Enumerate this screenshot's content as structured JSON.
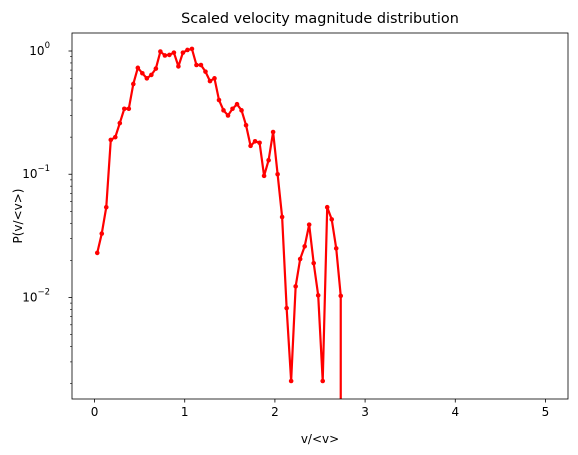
{
  "chart_data": {
    "type": "line",
    "title": "Scaled velocity magnitude distribution",
    "xlabel": "v/<v>",
    "ylabel": "P(v/<v>)",
    "yscale": "log",
    "xlim": [
      -0.25,
      5.25
    ],
    "ylim": [
      0.0015,
      1.4
    ],
    "xticks": [
      0,
      1,
      2,
      3,
      4,
      5
    ],
    "xtick_labels": [
      "0",
      "1",
      "2",
      "3",
      "4",
      "5"
    ],
    "yticks": [
      0.01,
      0.1,
      1
    ],
    "ytick_labels": [
      "10",
      "10",
      "10"
    ],
    "ytick_exponents": [
      "−2",
      "−1",
      "0"
    ],
    "series": [
      {
        "name": "P(v/<v>)",
        "color": "#ff0000",
        "x": [
          0.03,
          0.08,
          0.13,
          0.18,
          0.23,
          0.28,
          0.33,
          0.38,
          0.43,
          0.48,
          0.53,
          0.58,
          0.63,
          0.68,
          0.73,
          0.78,
          0.83,
          0.88,
          0.93,
          0.98,
          1.03,
          1.08,
          1.13,
          1.18,
          1.23,
          1.28,
          1.33,
          1.38,
          1.43,
          1.48,
          1.53,
          1.58,
          1.63,
          1.68,
          1.73,
          1.78,
          1.83,
          1.88,
          1.93,
          1.98,
          2.03,
          2.08,
          2.13,
          2.18,
          2.23,
          2.28,
          2.33,
          2.38,
          2.43,
          2.48,
          2.53,
          2.58,
          2.63,
          2.68,
          2.73
        ],
        "y": [
          0.023,
          0.033,
          0.054,
          0.19,
          0.2,
          0.26,
          0.34,
          0.34,
          0.54,
          0.73,
          0.66,
          0.6,
          0.64,
          0.72,
          0.99,
          0.92,
          0.93,
          0.97,
          0.75,
          0.97,
          1.02,
          1.04,
          0.77,
          0.77,
          0.68,
          0.57,
          0.6,
          0.4,
          0.33,
          0.3,
          0.34,
          0.37,
          0.33,
          0.25,
          0.17,
          0.185,
          0.18,
          0.097,
          0.13,
          0.22,
          0.1,
          0.045,
          0.0082,
          0.0021,
          0.0123,
          0.0205,
          0.026,
          0.039,
          0.019,
          0.0104,
          0.0021,
          0.054,
          0.043,
          0.025,
          0.0103
        ]
      }
    ]
  }
}
